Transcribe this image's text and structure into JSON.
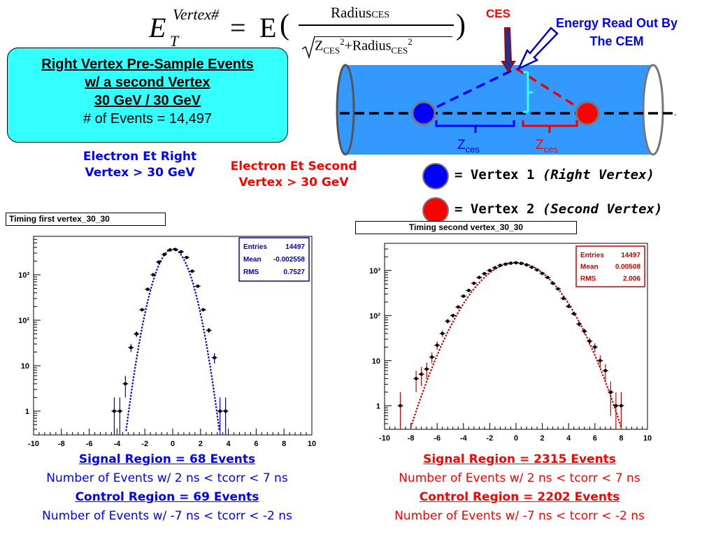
{
  "formula": {
    "lhs_symbol": "E",
    "lhs_superscript": "Vertex#",
    "lhs_subscript": "T",
    "equals": "=",
    "function": "E",
    "open_paren": "(",
    "close_paren": ")",
    "numerator": "Radius",
    "numerator_sub": "CES",
    "denominator": {
      "z": "Z",
      "z_sub": "CES",
      "z_sup": "2",
      "plus": "+Radius",
      "r_sub": "CES",
      "r_sup": "2"
    }
  },
  "info_box": {
    "line1": "Right Vertex Pre-Sample Events",
    "line2": "w/ a second Vertex",
    "line3": "30 GeV / 30 GeV",
    "line4": "# of Events = 14,497"
  },
  "detector": {
    "ces_label": "CES",
    "energy_label_line1": "Energy Read Out By",
    "energy_label_line2": "The CEM",
    "z_left": "Z",
    "z_left_sub": "ces",
    "z_right": "Z",
    "z_right_sub": "ces",
    "colors": {
      "tube": "#3399ff",
      "vertex1": "#0000ff",
      "vertex2": "#ff0000"
    }
  },
  "electron_labels": {
    "right_line1": "Electron Et Right",
    "right_line2": "Vertex > 30 GeV",
    "second_line1": "Electron Et Second",
    "second_line2": "Vertex > 30 GeV"
  },
  "legend": {
    "vertex1_text": "= Vertex 1 ",
    "vertex1_em": "(Right Vertex)",
    "vertex2_text": "= Vertex 2 ",
    "vertex2_em": "(Second Vertex)"
  },
  "chart_data": [
    {
      "type": "scatter",
      "title": "Timing first vertex_30_30",
      "color": "#0000cc",
      "y_scale": "log",
      "xlim": [
        -10,
        10
      ],
      "ylim": [
        0.3,
        7000
      ],
      "x_ticks": [
        "-10",
        "-8",
        "-6",
        "-4",
        "-2",
        "0",
        "2",
        "4",
        "6",
        "8",
        "10"
      ],
      "y_ticks": [
        "1",
        "10",
        "10²",
        "10³"
      ],
      "stats": {
        "entries_label": "Entries",
        "entries": "14497",
        "mean_label": "Mean",
        "mean": "-0.002558",
        "rms_label": "RMS",
        "rms": "0.7527"
      },
      "fit": {
        "mean": 0.0,
        "sigma": 0.78,
        "amplitude": 3700
      },
      "points": [
        {
          "x": -4.2,
          "y": 1
        },
        {
          "x": -3.8,
          "y": 1
        },
        {
          "x": -3.4,
          "y": 4
        },
        {
          "x": -3.0,
          "y": 25
        },
        {
          "x": -2.6,
          "y": 50
        },
        {
          "x": -2.2,
          "y": 170
        },
        {
          "x": -1.8,
          "y": 480
        },
        {
          "x": -1.4,
          "y": 1000
        },
        {
          "x": -1.0,
          "y": 1900
        },
        {
          "x": -0.6,
          "y": 2800
        },
        {
          "x": -0.2,
          "y": 3500
        },
        {
          "x": 0.2,
          "y": 3600
        },
        {
          "x": 0.6,
          "y": 3200
        },
        {
          "x": 1.0,
          "y": 2400
        },
        {
          "x": 1.4,
          "y": 1200
        },
        {
          "x": 1.8,
          "y": 560
        },
        {
          "x": 2.2,
          "y": 170
        },
        {
          "x": 2.6,
          "y": 60
        },
        {
          "x": 3.0,
          "y": 15
        },
        {
          "x": 3.4,
          "y": 1
        },
        {
          "x": 3.8,
          "y": 1
        }
      ]
    },
    {
      "type": "scatter",
      "title": "Timing second vertex_30_30",
      "color": "#cc0000",
      "y_scale": "log",
      "xlim": [
        -10,
        10
      ],
      "ylim": [
        0.3,
        4000
      ],
      "x_ticks": [
        "-10",
        "-8",
        "-6",
        "-4",
        "-2",
        "0",
        "2",
        "4",
        "6",
        "8",
        "10"
      ],
      "y_ticks": [
        "1",
        "10",
        "10²",
        "10³"
      ],
      "stats": {
        "entries_label": "Entries",
        "entries": "14497",
        "mean_label": "Mean",
        "mean": "0.00508",
        "rms_label": "RMS",
        "rms": "2.006"
      },
      "fit": {
        "mean": 0.0,
        "sigma": 1.95,
        "amplitude": 1500
      },
      "points": [
        {
          "x": -8.8,
          "y": 1
        },
        {
          "x": -7.6,
          "y": 4
        },
        {
          "x": -7.2,
          "y": 5
        },
        {
          "x": -6.8,
          "y": 6.5
        },
        {
          "x": -6.4,
          "y": 12
        },
        {
          "x": -6.0,
          "y": 22
        },
        {
          "x": -5.6,
          "y": 40
        },
        {
          "x": -5.2,
          "y": 75
        },
        {
          "x": -4.8,
          "y": 100
        },
        {
          "x": -4.4,
          "y": 155
        },
        {
          "x": -4.0,
          "y": 270
        },
        {
          "x": -3.6,
          "y": 360
        },
        {
          "x": -3.2,
          "y": 520
        },
        {
          "x": -2.8,
          "y": 700
        },
        {
          "x": -2.4,
          "y": 850
        },
        {
          "x": -2.0,
          "y": 1000
        },
        {
          "x": -1.6,
          "y": 1150
        },
        {
          "x": -1.2,
          "y": 1300
        },
        {
          "x": -0.8,
          "y": 1380
        },
        {
          "x": -0.4,
          "y": 1450
        },
        {
          "x": 0.0,
          "y": 1480
        },
        {
          "x": 0.4,
          "y": 1430
        },
        {
          "x": 0.8,
          "y": 1330
        },
        {
          "x": 1.2,
          "y": 1180
        },
        {
          "x": 1.6,
          "y": 1030
        },
        {
          "x": 2.0,
          "y": 860
        },
        {
          "x": 2.4,
          "y": 700
        },
        {
          "x": 2.8,
          "y": 520
        },
        {
          "x": 3.2,
          "y": 390
        },
        {
          "x": 3.6,
          "y": 240
        },
        {
          "x": 4.0,
          "y": 160
        },
        {
          "x": 4.4,
          "y": 110
        },
        {
          "x": 4.8,
          "y": 65
        },
        {
          "x": 5.2,
          "y": 45
        },
        {
          "x": 5.6,
          "y": 27
        },
        {
          "x": 6.0,
          "y": 20
        },
        {
          "x": 6.4,
          "y": 10
        },
        {
          "x": 6.8,
          "y": 6
        },
        {
          "x": 7.2,
          "y": 2
        },
        {
          "x": 7.6,
          "y": 1
        },
        {
          "x": 8.0,
          "y": 1
        }
      ]
    }
  ],
  "left_summary": {
    "signal": "Signal Region = 68 Events",
    "signal_def": "Number of Events w/ 2 ns < tcorr < 7 ns",
    "control": "Control Region = 69 Events",
    "control_def": "Number of Events w/ -7 ns < tcorr < -2 ns",
    "color": "#0000ff"
  },
  "right_summary": {
    "signal": "Signal Region = 2315 Events",
    "signal_def": "Number of Events w/ 2 ns < tcorr < 7 ns",
    "control": "Control Region = 2202 Events",
    "control_def": "Number of Events w/ -7 ns < tcorr < -2 ns",
    "color": "#ff0000"
  }
}
